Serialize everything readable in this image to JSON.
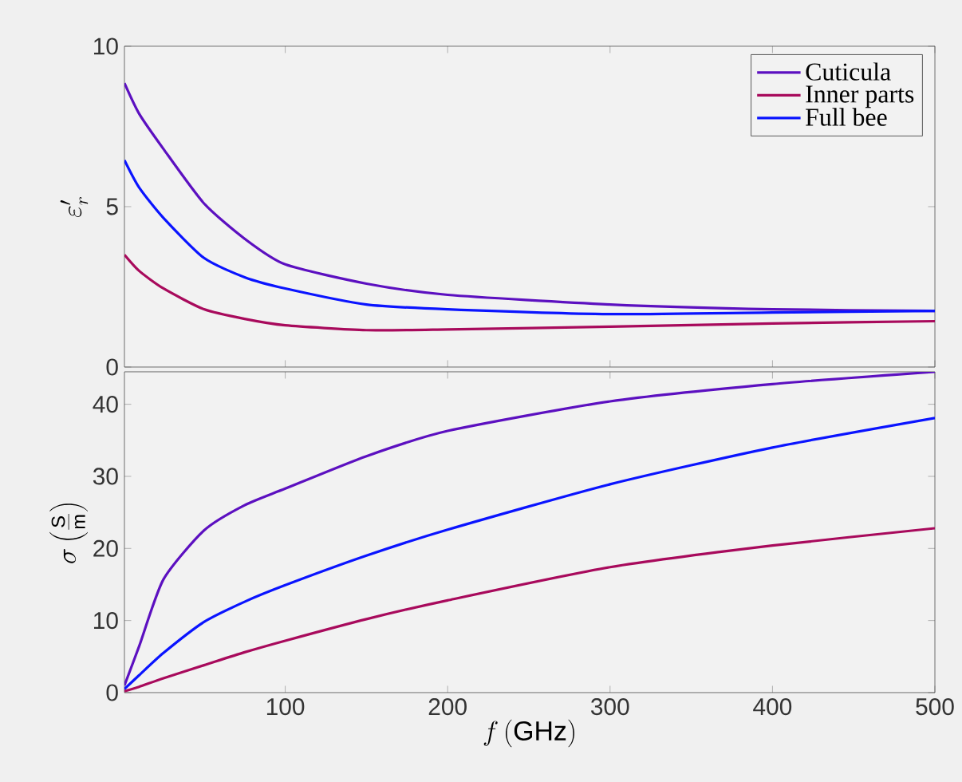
{
  "chart_data": [
    {
      "type": "line",
      "ylabel": "\\varepsilon'_r",
      "xlim": [
        1,
        500
      ],
      "xticks": [
        100,
        200,
        300,
        400,
        500
      ],
      "ylim": [
        0,
        10
      ],
      "yticks": [
        0,
        5,
        10
      ],
      "tick_labels": "y",
      "legend": "top right",
      "grid": false,
      "x": [
        1,
        10,
        25,
        50,
        75,
        100,
        150,
        200,
        300,
        400,
        500
      ],
      "series": [
        {
          "name": "Cuticula",
          "color": "#5c10c0",
          "values": [
            8.85,
            7.9,
            6.8,
            5.1,
            4.0,
            3.2,
            2.6,
            2.25,
            1.95,
            1.8,
            1.75
          ]
        },
        {
          "name": "Inner parts",
          "color": "#a80a5c",
          "values": [
            3.5,
            3.0,
            2.45,
            1.8,
            1.5,
            1.3,
            1.15,
            1.17,
            1.26,
            1.36,
            1.43
          ]
        },
        {
          "name": "Full bee",
          "color": "#0a14ff",
          "values": [
            6.45,
            5.6,
            4.65,
            3.4,
            2.8,
            2.45,
            1.95,
            1.8,
            1.65,
            1.7,
            1.75
          ]
        }
      ]
    },
    {
      "type": "line",
      "xlabel": "f\\,(\\mathrm{GHz})",
      "ylabel": "\\sigma\\left(\\frac{\\mathrm{S}}{\\mathrm{m}}\\right)",
      "xlim": [
        1,
        500
      ],
      "xticks": [
        100,
        200,
        300,
        400,
        500
      ],
      "ylim": [
        0,
        44.5
      ],
      "yticks": [
        0,
        10,
        20,
        30,
        40
      ],
      "grid": false,
      "x": [
        1,
        10,
        25,
        50,
        75,
        100,
        150,
        200,
        300,
        400,
        500
      ],
      "series": [
        {
          "color": "#5c10c0",
          "values": [
            1,
            6.4,
            15.7,
            22.5,
            26,
            28.3,
            32.8,
            36.3,
            40.4,
            42.8,
            44.5
          ]
        },
        {
          "color": "#a80a5c",
          "values": [
            0.2,
            0.8,
            2,
            3.8,
            5.6,
            7.2,
            10.2,
            12.8,
            17.4,
            20.4,
            22.8
          ]
        },
        {
          "color": "#0a14ff",
          "values": [
            0.5,
            2.4,
            5.5,
            9.8,
            12.6,
            14.9,
            19,
            22.6,
            28.9,
            34,
            38.1
          ]
        }
      ]
    }
  ]
}
